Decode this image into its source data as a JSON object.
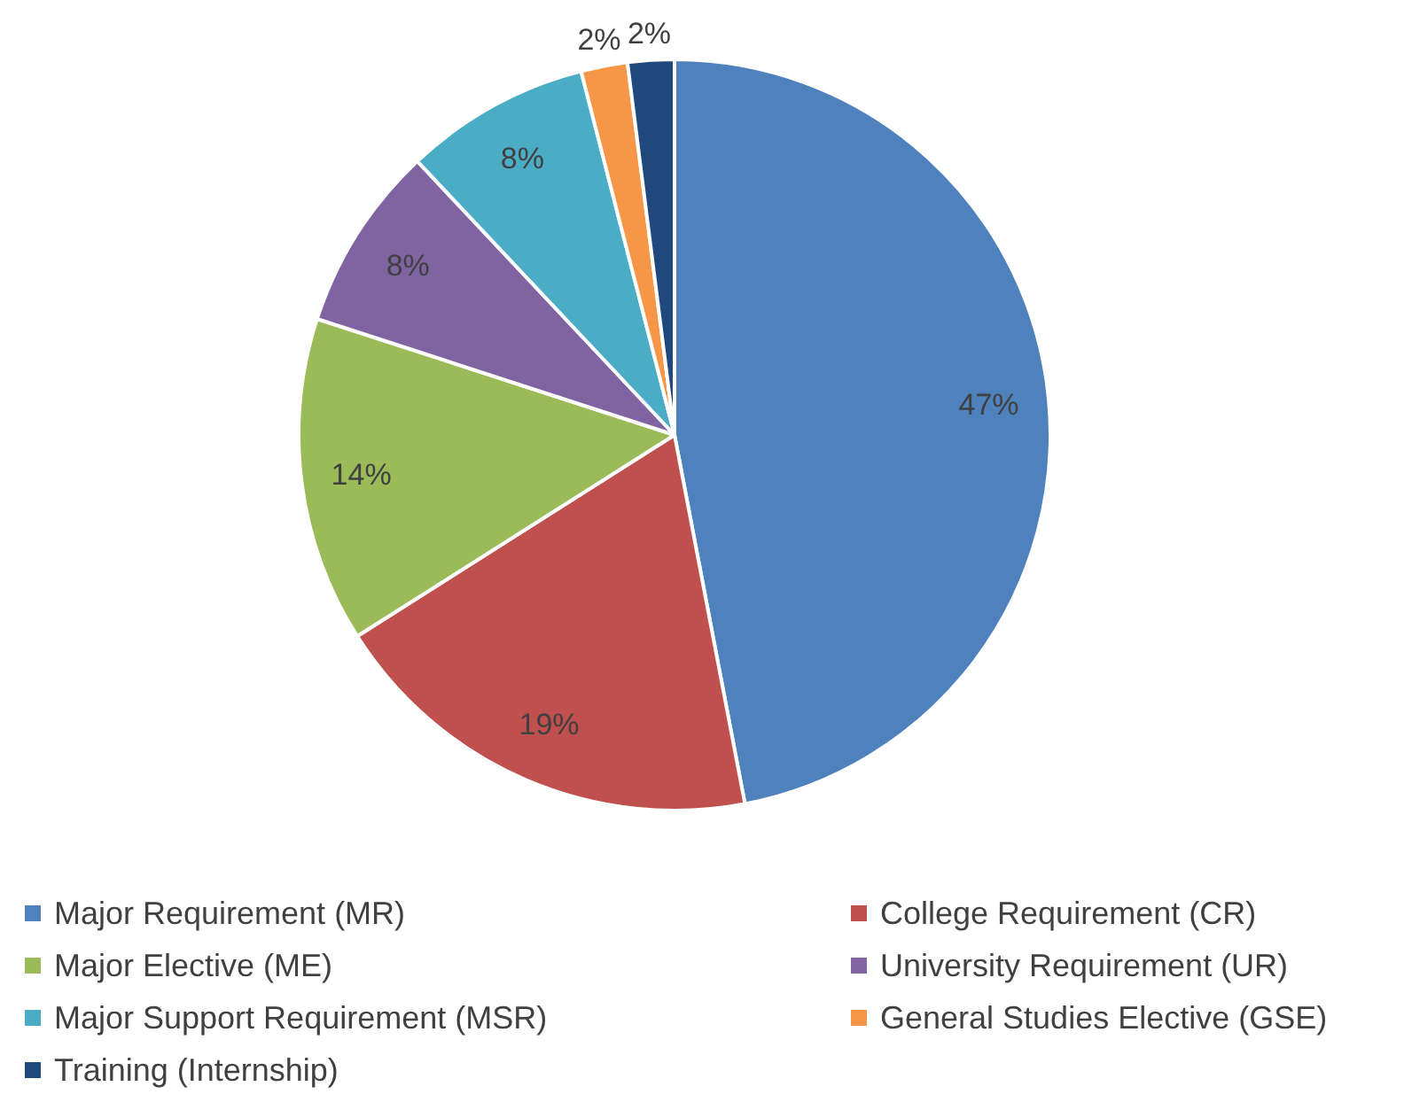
{
  "chart_data": {
    "type": "pie",
    "categories": [
      "Major Requirement (MR)",
      "College Requirement (CR)",
      "Major Elective (ME)",
      "University Requirement (UR)",
      "Major Support Requirement (MSR)",
      "General Studies Elective (GSE)",
      "Training (Internship)"
    ],
    "values": [
      47,
      19,
      14,
      8,
      8,
      2,
      2
    ],
    "colors": [
      "#4f81bd",
      "#c0504d",
      "#9bbb59",
      "#8064a2",
      "#4bacc6",
      "#f79646",
      "#1f497d"
    ],
    "value_labels": [
      "47%",
      "19%",
      "14%",
      "8%",
      "8%",
      "2%",
      "2%"
    ],
    "legend": "bottom"
  }
}
